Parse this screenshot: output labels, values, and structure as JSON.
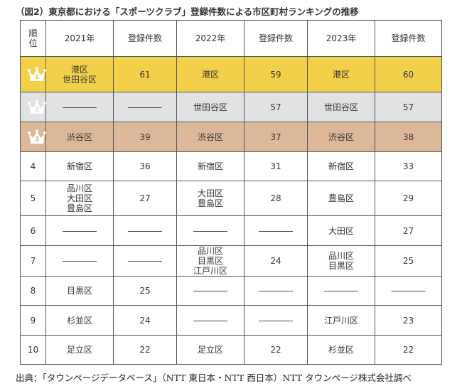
{
  "title": "（図2）東京都における「スポーツクラブ」登録件数による市区町村ランキングの推移",
  "table": {
    "headers": [
      "順\n位",
      "2021年",
      "登録件数",
      "2022年",
      "登録件数",
      "2023年",
      "登録件数"
    ],
    "rows": [
      {
        "rank": "1",
        "crown": "gold",
        "cells": [
          [
            "港区",
            "世田谷区"
          ],
          [
            "61"
          ],
          [
            "港区"
          ],
          [
            "59"
          ],
          [
            "港区"
          ],
          [
            "60"
          ]
        ]
      },
      {
        "rank": "2",
        "crown": "silver",
        "cells": [
          [
            "――――"
          ],
          [
            "――――"
          ],
          [
            "世田谷区"
          ],
          [
            "57"
          ],
          [
            "世田谷区"
          ],
          [
            "57"
          ]
        ]
      },
      {
        "rank": "3",
        "crown": "bronze",
        "cells": [
          [
            "渋谷区"
          ],
          [
            "39"
          ],
          [
            "渋谷区"
          ],
          [
            "37"
          ],
          [
            "渋谷区"
          ],
          [
            "38"
          ]
        ]
      },
      {
        "rank": "4",
        "cells": [
          [
            "新宿区"
          ],
          [
            "36"
          ],
          [
            "新宿区"
          ],
          [
            "31"
          ],
          [
            "新宿区"
          ],
          [
            "33"
          ]
        ]
      },
      {
        "rank": "5",
        "cells": [
          [
            "品川区",
            "大田区",
            "豊島区"
          ],
          [
            "27"
          ],
          [
            "大田区",
            "豊島区"
          ],
          [
            "28"
          ],
          [
            "豊島区"
          ],
          [
            "29"
          ]
        ]
      },
      {
        "rank": "6",
        "cells": [
          [
            "――――"
          ],
          [
            "――――"
          ],
          [
            "――――"
          ],
          [
            "――――"
          ],
          [
            "大田区"
          ],
          [
            "27"
          ]
        ]
      },
      {
        "rank": "7",
        "cells": [
          [
            "――――"
          ],
          [
            "――――"
          ],
          [
            "品川区",
            "目黒区",
            "江戸川区"
          ],
          [
            "24"
          ],
          [
            "品川区",
            "目黒区"
          ],
          [
            "25"
          ]
        ]
      },
      {
        "rank": "8",
        "cells": [
          [
            "目黒区"
          ],
          [
            "25"
          ],
          [
            "――――"
          ],
          [
            "――――"
          ],
          [
            "――――"
          ],
          [
            "――――"
          ]
        ]
      },
      {
        "rank": "9",
        "cells": [
          [
            "杉並区"
          ],
          [
            "24"
          ],
          [
            "――――"
          ],
          [
            "――――"
          ],
          [
            "江戸川区"
          ],
          [
            "23"
          ]
        ]
      },
      {
        "rank": "10",
        "cells": [
          [
            "足立区"
          ],
          [
            "22"
          ],
          [
            "足立区"
          ],
          [
            "22"
          ],
          [
            "杉並区"
          ],
          [
            "22"
          ]
        ]
      }
    ]
  },
  "colors": {
    "gold": "#f3d04a",
    "silver": "#e2e2e2",
    "bronze": "#ddb898",
    "crown": "#ffffff"
  },
  "source": "出典：「タウンページデータベース」（NTT 東日本・NTT 西日本）NTT タウンページ株式会社調べ"
}
